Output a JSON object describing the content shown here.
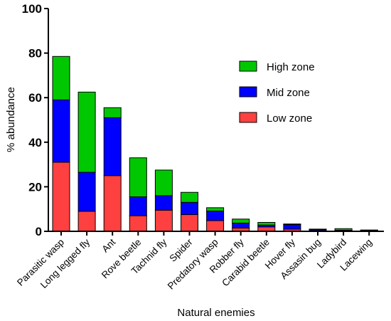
{
  "chart_data": {
    "type": "bar",
    "stacked": true,
    "title": "",
    "xlabel": "Natural enemies",
    "ylabel": "% abundance",
    "ylim": [
      0,
      100
    ],
    "yticks": [
      0,
      20,
      40,
      60,
      80,
      100
    ],
    "grid": false,
    "legend_position": "top-right",
    "categories": [
      "Parasitic wasp",
      "Long legged fly",
      "Ant",
      "Rove beetle",
      "Tachnid fly",
      "Spider",
      "Predatory wasp",
      "Robber fly",
      "Carabid beetle",
      "Hover fly",
      "Assasin bug",
      "Ladybird",
      "Lacewing"
    ],
    "series": [
      {
        "name": "Low zone",
        "color": "#ff4040",
        "values": [
          31,
          9,
          25,
          7,
          9.5,
          7.5,
          4.8,
          1.5,
          2,
          1,
          0.4,
          0.3,
          0.2
        ]
      },
      {
        "name": "Mid zone",
        "color": "#0000ff",
        "values": [
          28,
          17.5,
          26,
          8.5,
          6.5,
          5.5,
          4.3,
          2.2,
          0.8,
          2,
          0.4,
          0.2,
          0.2
        ]
      },
      {
        "name": "High zone",
        "color": "#00c800",
        "values": [
          19.5,
          36,
          4.5,
          17.5,
          11.5,
          4.5,
          1.5,
          1.8,
          1.2,
          0.3,
          0.2,
          0.7,
          0.2
        ]
      }
    ],
    "legend_order": [
      "High zone",
      "Mid zone",
      "Low zone"
    ]
  }
}
